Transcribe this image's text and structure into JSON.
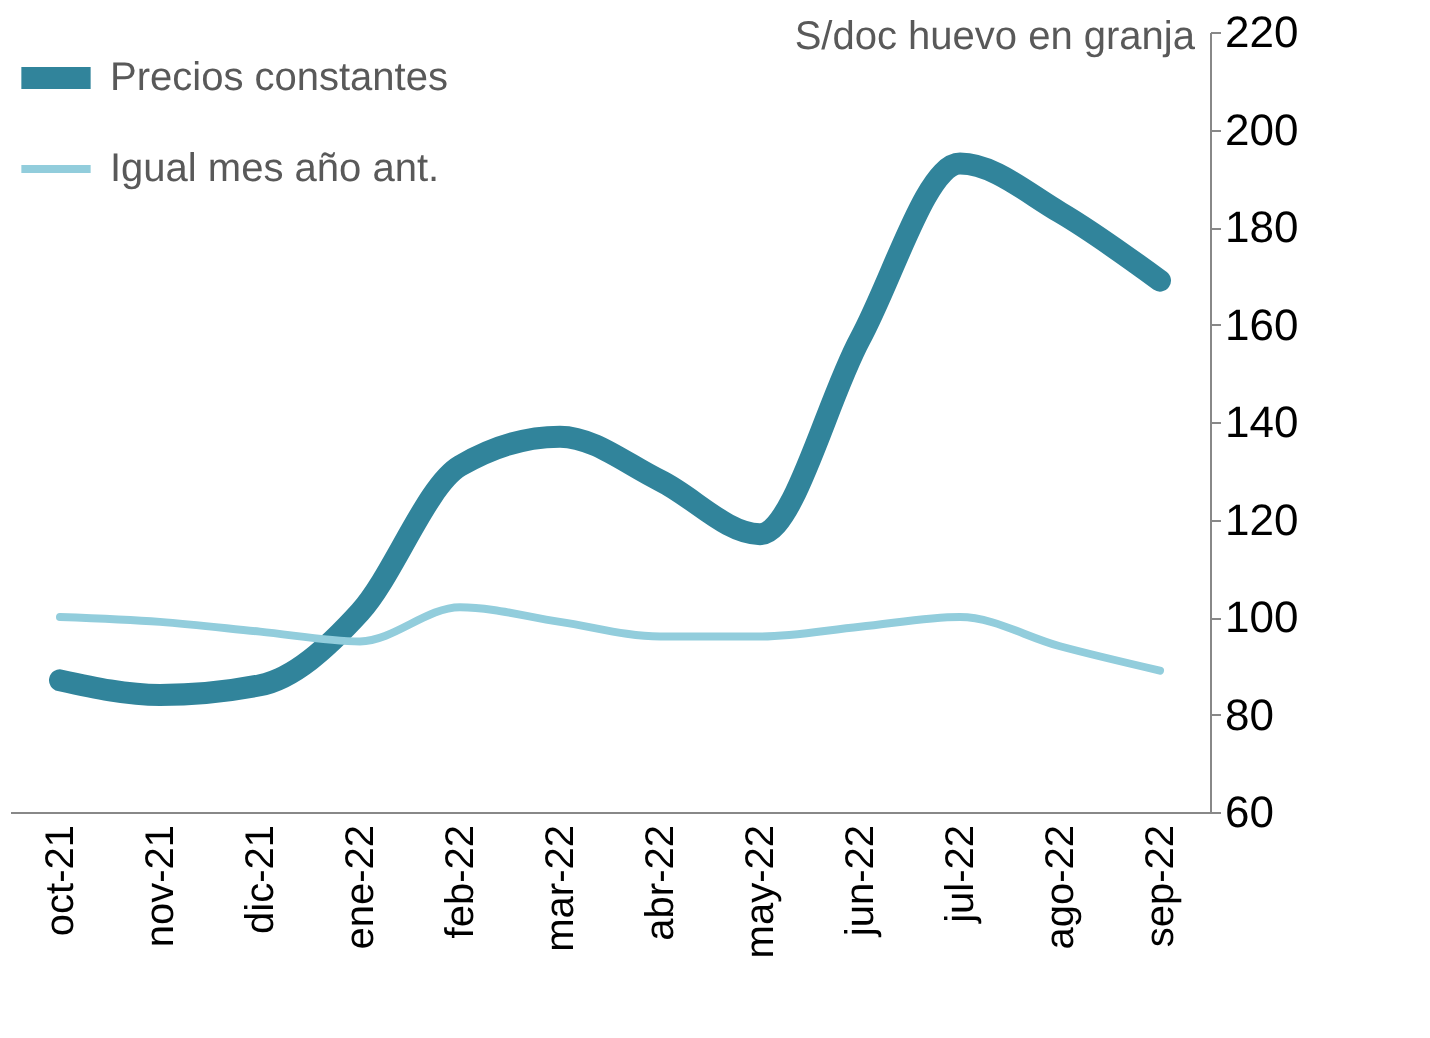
{
  "chart_data": {
    "type": "line",
    "ylabel": "S/doc huevo en granja",
    "categories": [
      "oct-21",
      "nov-21",
      "dic-21",
      "ene-22",
      "feb-22",
      "mar-22",
      "abr-22",
      "may-22",
      "jun-22",
      "jul-22",
      "ago-22",
      "sep-22"
    ],
    "series": [
      {
        "name": "Precios constantes",
        "color": "#31849b",
        "values": [
          87,
          84,
          86,
          101,
          131,
          137,
          128,
          117,
          157,
          193,
          183,
          169
        ]
      },
      {
        "name": "Igual mes año ant.",
        "color": "#92cddc",
        "values": [
          100,
          99,
          97,
          95,
          102,
          99,
          96,
          96,
          98,
          100,
          94,
          89
        ]
      }
    ],
    "ylim": [
      60,
      220
    ],
    "yticks": [
      60,
      80,
      100,
      120,
      140,
      160,
      180,
      200,
      220
    ],
    "grid": false,
    "legend": "top left",
    "marker": "none",
    "line_style": "solid"
  }
}
